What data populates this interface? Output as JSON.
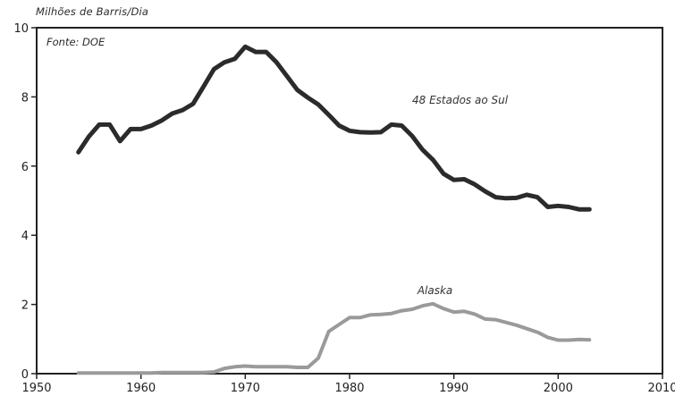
{
  "chart_data": {
    "type": "line",
    "ylabel": "Milhões de Barris/Dia",
    "source_note": "Fonte: DOE",
    "xlim": [
      1950,
      2010
    ],
    "ylim": [
      0,
      10
    ],
    "x_ticks": [
      "1950",
      "1960",
      "1970",
      "1980",
      "1990",
      "2000",
      "2010"
    ],
    "y_ticks": [
      "0",
      "2",
      "4",
      "6",
      "8",
      "10"
    ],
    "grid": false,
    "series": [
      {
        "name": "48 Estados ao Sul",
        "color": "#2b2b2b",
        "x": [
          1954,
          1955,
          1956,
          1957,
          1958,
          1959,
          1960,
          1961,
          1962,
          1963,
          1964,
          1965,
          1966,
          1967,
          1968,
          1969,
          1970,
          1971,
          1972,
          1973,
          1974,
          1975,
          1976,
          1977,
          1978,
          1979,
          1980,
          1981,
          1982,
          1983,
          1984,
          1985,
          1986,
          1987,
          1988,
          1989,
          1990,
          1991,
          1992,
          1993,
          1994,
          1995,
          1996,
          1997,
          1998,
          1999,
          2000,
          2001,
          2002,
          2003
        ],
        "y": [
          6.4,
          6.85,
          7.2,
          7.2,
          6.72,
          7.07,
          7.07,
          7.17,
          7.32,
          7.52,
          7.62,
          7.8,
          8.3,
          8.8,
          9.0,
          9.1,
          9.45,
          9.3,
          9.3,
          9.0,
          8.6,
          8.2,
          7.98,
          7.78,
          7.48,
          7.17,
          7.02,
          6.98,
          6.97,
          6.98,
          7.2,
          7.17,
          6.87,
          6.47,
          6.18,
          5.78,
          5.6,
          5.62,
          5.47,
          5.27,
          5.1,
          5.07,
          5.08,
          5.17,
          5.1,
          4.82,
          4.85,
          4.82,
          4.75,
          4.75
        ]
      },
      {
        "name": "Alaska",
        "color": "#9a9a9a",
        "x": [
          1954,
          1955,
          1956,
          1957,
          1958,
          1959,
          1960,
          1961,
          1962,
          1963,
          1964,
          1965,
          1966,
          1967,
          1968,
          1969,
          1970,
          1971,
          1972,
          1973,
          1974,
          1975,
          1976,
          1977,
          1978,
          1979,
          1980,
          1981,
          1982,
          1983,
          1984,
          1985,
          1986,
          1987,
          1988,
          1989,
          1990,
          1991,
          1992,
          1993,
          1994,
          1995,
          1996,
          1997,
          1998,
          1999,
          2000,
          2001,
          2002,
          2003
        ],
        "y": [
          0.02,
          0.02,
          0.02,
          0.02,
          0.02,
          0.02,
          0.02,
          0.02,
          0.03,
          0.03,
          0.03,
          0.03,
          0.03,
          0.05,
          0.15,
          0.2,
          0.22,
          0.2,
          0.2,
          0.2,
          0.2,
          0.18,
          0.18,
          0.45,
          1.22,
          1.42,
          1.62,
          1.62,
          1.7,
          1.71,
          1.74,
          1.82,
          1.86,
          1.96,
          2.02,
          1.88,
          1.78,
          1.8,
          1.72,
          1.58,
          1.56,
          1.48,
          1.4,
          1.3,
          1.2,
          1.05,
          0.97,
          0.97,
          0.99,
          0.98
        ]
      }
    ],
    "annotations": [
      {
        "text": "48 Estados ao Sul",
        "x": 1986,
        "y": 7.8
      },
      {
        "text": "Alaska",
        "x": 1986.5,
        "y": 2.3
      }
    ]
  }
}
